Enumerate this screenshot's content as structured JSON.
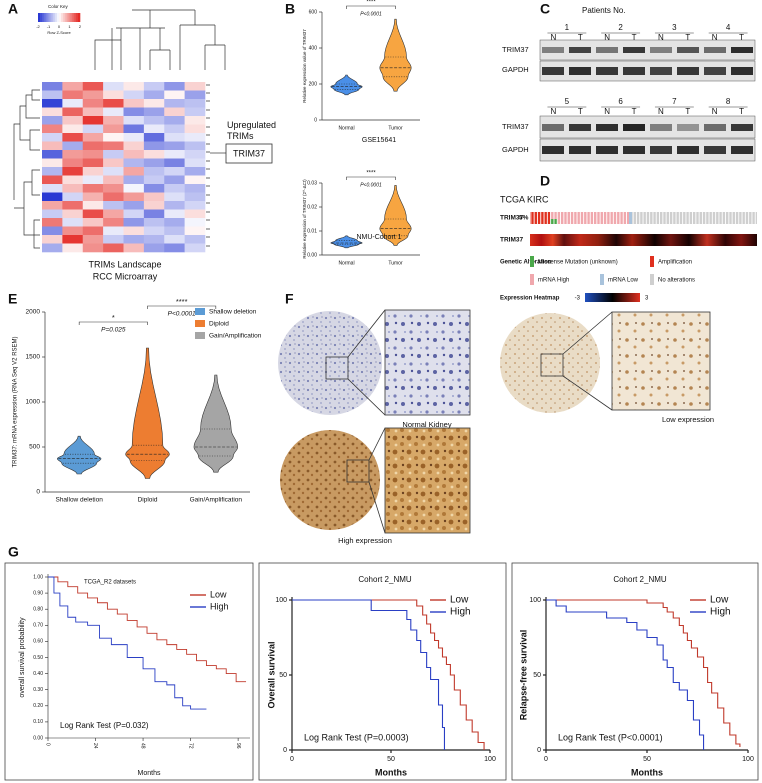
{
  "panel_labels": [
    "A",
    "B",
    "C",
    "D",
    "E",
    "F",
    "G"
  ],
  "chart_data": [
    {
      "type": "heatmap",
      "title": "TRIMs Landscape",
      "subtitle": "RCC Microarray",
      "color_key_title": "Color Key",
      "zlabel": "Row Z-Score",
      "zlim": [
        -2,
        2
      ],
      "zticks": [
        -2,
        -1,
        0,
        1,
        2
      ],
      "colors": [
        "#1f2fd1",
        "#ffffff",
        "#e3201b"
      ],
      "annotation": "Upregulated TRIMs",
      "highlight": "TRIM37",
      "z": [
        [
          -1.2,
          0.8,
          1.5,
          -0.3,
          0.2,
          -0.5,
          -1.0,
          0.4
        ],
        [
          -0.6,
          1.2,
          0.9,
          0.3,
          -0.4,
          -0.8,
          0.1,
          -0.9
        ],
        [
          -1.8,
          -0.2,
          1.1,
          1.6,
          0.5,
          0.2,
          -0.7,
          -0.6
        ],
        [
          0.3,
          1.4,
          0.6,
          -0.2,
          -1.1,
          -0.9,
          0.4,
          -0.5
        ],
        [
          -0.9,
          0.5,
          1.8,
          0.7,
          -0.3,
          -0.6,
          -0.8,
          0.2
        ],
        [
          1.1,
          0.2,
          -0.4,
          0.9,
          -1.3,
          -0.2,
          -0.5,
          0.3
        ],
        [
          -0.4,
          1.6,
          0.8,
          0.1,
          -0.2,
          -1.4,
          -0.3,
          -0.2
        ],
        [
          0.6,
          -0.8,
          1.3,
          1.2,
          0.4,
          -1.0,
          -0.9,
          -0.6
        ],
        [
          -1.5,
          0.9,
          1.0,
          -0.5,
          0.6,
          0.3,
          -0.2,
          -0.4
        ],
        [
          0.2,
          1.1,
          1.4,
          0.5,
          -0.7,
          -0.9,
          -1.2,
          -0.3
        ],
        [
          -0.7,
          1.7,
          0.4,
          -0.3,
          0.8,
          -0.6,
          -0.4,
          -0.8
        ],
        [
          1.5,
          0.3,
          -0.2,
          0.6,
          -0.8,
          -0.5,
          -0.9,
          0.1
        ],
        [
          -0.3,
          0.6,
          1.2,
          1.0,
          -0.1,
          -1.1,
          -0.5,
          -0.7
        ],
        [
          -1.9,
          -0.4,
          0.7,
          1.3,
          0.9,
          0.5,
          -0.3,
          -0.6
        ],
        [
          0.8,
          1.3,
          0.2,
          -0.6,
          -0.9,
          0.4,
          -0.7,
          -0.4
        ],
        [
          -0.5,
          0.4,
          1.6,
          0.8,
          -0.4,
          -1.2,
          -0.2,
          0.3
        ],
        [
          1.2,
          -0.3,
          0.5,
          1.1,
          -1.0,
          -0.6,
          -0.8,
          -0.1
        ],
        [
          -1.1,
          1.0,
          1.3,
          -0.2,
          0.3,
          -0.4,
          -0.6,
          0.1
        ],
        [
          0.4,
          1.8,
          0.9,
          -0.5,
          -0.8,
          -0.7,
          -0.3,
          -0.6
        ],
        [
          -0.8,
          0.2,
          1.0,
          1.4,
          0.6,
          -0.9,
          -1.1,
          -0.4
        ]
      ]
    },
    {
      "type": "violin",
      "ylabel": "Relative expression value of TRIM37",
      "caption": "GSE15641",
      "categories": [
        "Normal",
        "Tumor"
      ],
      "colors": [
        "#4a8fe7",
        "#f7a541"
      ],
      "stats": [
        {
          "min": 140,
          "q1": 170,
          "median": 185,
          "q3": 200,
          "max": 250
        },
        {
          "min": 160,
          "q1": 240,
          "median": 290,
          "q3": 350,
          "max": 560
        }
      ],
      "ylim": [
        0,
        600
      ],
      "yticks": [
        0,
        200,
        400,
        600
      ],
      "annotations": [
        {
          "stars": "****",
          "p": "P<0.0001"
        }
      ]
    },
    {
      "type": "violin",
      "ylabel": "Relative expression of TRIM37 (2^-ΔCt)",
      "caption": "NMU-Cohort 1",
      "categories": [
        "Normal",
        "Tumor"
      ],
      "colors": [
        "#4a8fe7",
        "#f7a541"
      ],
      "stats": [
        {
          "min": 0.003,
          "q1": 0.0045,
          "median": 0.005,
          "q3": 0.006,
          "max": 0.008
        },
        {
          "min": 0.004,
          "q1": 0.008,
          "median": 0.011,
          "q3": 0.015,
          "max": 0.029
        }
      ],
      "ylim": [
        0,
        0.03
      ],
      "yticks": [
        {
          "value": 0,
          "label": "0.00"
        },
        0.01,
        0.02,
        0.03
      ],
      "annotations": [
        {
          "stars": "****",
          "p": "P<0.0001"
        }
      ]
    },
    {
      "type": "violin",
      "ylabel": "TRIM37: mRNA expression (RNA Seq V2 RSEM)",
      "categories": [
        "Shallow deletion",
        "Diploid",
        "Gain/Amplification"
      ],
      "colors": [
        "#5b9bd5",
        "#ed7d31",
        "#a5a5a5"
      ],
      "stats": [
        {
          "min": 200,
          "q1": 320,
          "median": 370,
          "q3": 420,
          "max": 620
        },
        {
          "min": 150,
          "q1": 350,
          "median": 420,
          "q3": 520,
          "max": 1600
        },
        {
          "min": 220,
          "q1": 400,
          "median": 500,
          "q3": 700,
          "max": 1300
        }
      ],
      "ylim": [
        0,
        2000
      ],
      "yticks": [
        0,
        500,
        1000,
        1500,
        2000
      ],
      "legend": "top-right",
      "annotations": [
        {
          "stars": "*",
          "p": "P=0.025"
        },
        {
          "stars": "****",
          "p": "P<0.0001"
        }
      ]
    },
    {
      "type": "survival",
      "title": "TCGA_R2 datasets",
      "ylabel": "overall survival probability",
      "xlabel": "Months",
      "annotation": "Log Rank Test (P=0.032)",
      "legend": "top-right",
      "rotate_xticks": true,
      "xlim": [
        0,
        102
      ],
      "xticks": [
        0,
        24,
        48,
        72,
        96
      ],
      "ylim": [
        0,
        1
      ],
      "yticks": [
        {
          "value": 0,
          "label": "0.00"
        },
        {
          "value": 0.1,
          "label": "0.10"
        },
        {
          "value": 0.2,
          "label": "0.20"
        },
        {
          "value": 0.3,
          "label": "0.30"
        },
        {
          "value": 0.4,
          "label": "0.40"
        },
        {
          "value": 0.5,
          "label": "0.50"
        },
        {
          "value": 0.6,
          "label": "0.60"
        },
        {
          "value": 0.7,
          "label": "0.70"
        },
        {
          "value": 0.8,
          "label": "0.80"
        },
        {
          "value": 0.9,
          "label": "0.90"
        },
        {
          "value": 1,
          "label": "1.00"
        }
      ],
      "series": [
        {
          "name": "Low",
          "color": "#c0392b",
          "x": [
            0,
            5,
            10,
            15,
            20,
            25,
            30,
            35,
            40,
            45,
            50,
            55,
            60,
            65,
            70,
            75,
            80,
            85,
            90,
            95,
            100
          ],
          "y": [
            1,
            0.97,
            0.94,
            0.9,
            0.87,
            0.84,
            0.8,
            0.77,
            0.73,
            0.69,
            0.65,
            0.61,
            0.58,
            0.55,
            0.52,
            0.48,
            0.45,
            0.43,
            0.4,
            0.35,
            0.35
          ]
        },
        {
          "name": "High",
          "color": "#2a3fc4",
          "x": [
            0,
            3,
            6,
            10,
            14,
            20,
            26,
            32,
            40,
            48,
            54,
            60,
            64,
            68,
            72,
            80
          ],
          "y": [
            1,
            0.9,
            0.82,
            0.75,
            0.72,
            0.7,
            0.62,
            0.58,
            0.5,
            0.43,
            0.35,
            0.33,
            0.25,
            0.2,
            0.18,
            0.18
          ]
        }
      ]
    },
    {
      "type": "survival",
      "title": "Cohort 2_NMU",
      "ylabel": "Overall survival",
      "xlabel": "Months",
      "annotation": "Log Rank Test (P=0.0003)",
      "legend": "top-right",
      "xlim": [
        0,
        100
      ],
      "xticks": [
        0,
        50,
        100
      ],
      "ylim": [
        0,
        100
      ],
      "yticks": [
        0,
        50,
        100
      ],
      "series": [
        {
          "name": "Low",
          "color": "#c0392b",
          "x": [
            0,
            60,
            63,
            66,
            68,
            70,
            72,
            74,
            76,
            78,
            80,
            82,
            85,
            88,
            91,
            94,
            97
          ],
          "y": [
            100,
            100,
            96,
            90,
            84,
            78,
            73,
            68,
            62,
            57,
            50,
            40,
            30,
            20,
            12,
            5,
            0
          ]
        },
        {
          "name": "High",
          "color": "#2a3fc4",
          "x": [
            0,
            38,
            40,
            55,
            58,
            60,
            63,
            65,
            68,
            70,
            72,
            74,
            76,
            77
          ],
          "y": [
            100,
            100,
            93,
            93,
            87,
            80,
            73,
            65,
            55,
            47,
            47,
            30,
            15,
            0
          ]
        }
      ]
    },
    {
      "type": "survival",
      "title": "Cohort 2_NMU",
      "ylabel": "Relapse-free survival",
      "xlabel": "Months",
      "annotation": "Log Rank Test (P<0.0001)",
      "legend": "top-right",
      "xlim": [
        0,
        100
      ],
      "xticks": [
        0,
        50,
        100
      ],
      "ylim": [
        0,
        100
      ],
      "yticks": [
        0,
        50,
        100
      ],
      "series": [
        {
          "name": "Low",
          "color": "#c0392b",
          "x": [
            0,
            45,
            50,
            58,
            60,
            63,
            66,
            68,
            70,
            72,
            75,
            78,
            80,
            82,
            85,
            88,
            91,
            94,
            96
          ],
          "y": [
            100,
            100,
            98,
            95,
            92,
            88,
            83,
            78,
            73,
            68,
            62,
            55,
            45,
            38,
            28,
            18,
            10,
            4,
            2
          ]
        },
        {
          "name": "High",
          "color": "#2a3fc4",
          "x": [
            0,
            5,
            10,
            30,
            40,
            45,
            50,
            55,
            58,
            60,
            63,
            66,
            70,
            73,
            76,
            78
          ],
          "y": [
            100,
            96,
            92,
            88,
            85,
            80,
            75,
            70,
            60,
            55,
            45,
            40,
            33,
            20,
            10,
            0
          ]
        }
      ]
    }
  ],
  "western_blot": {
    "header": "Patients No.",
    "patients": [
      "1",
      "2",
      "3",
      "4",
      "5",
      "6",
      "7",
      "8"
    ],
    "lanes": [
      "N",
      "T"
    ],
    "rows": [
      "TRIM37",
      "GAPDH"
    ]
  },
  "oncoprint": {
    "title": "TCGA KIRC",
    "gene": "TRIM37",
    "frequency": "5%",
    "heatmap_gene": "TRIM37",
    "legend_title": "Genetic Alteration",
    "alterations": [
      {
        "name": "Missense Mutation (unknown)",
        "color": "#4aa84a"
      },
      {
        "name": "Amplification",
        "color": "#e0301e"
      },
      {
        "name": "mRNA High",
        "color": "#f0a8ad"
      },
      {
        "name": "mRNA Low",
        "color": "#a9c3dc"
      },
      {
        "name": "No alterations",
        "color": "#cfcfcf"
      }
    ],
    "expression_title": "Expression Heatmap",
    "expression_range": [
      -3,
      3
    ]
  },
  "ihc": {
    "labels": [
      "Normal Kidney",
      "Low expression",
      "High expression"
    ]
  }
}
